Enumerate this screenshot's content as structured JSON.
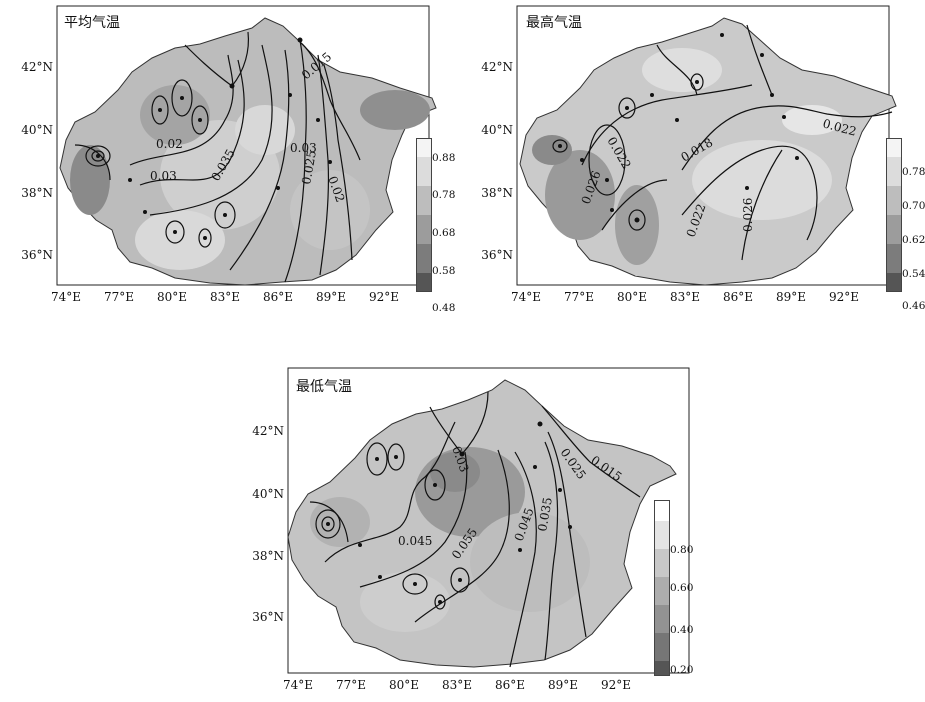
{
  "panels": [
    {
      "id": "mean",
      "title": "平均气温",
      "lat_labels": [
        "42°N",
        "40°N",
        "38°N",
        "36°N"
      ],
      "lon_labels": [
        "74°E",
        "77°E",
        "80°E",
        "83°E",
        "86°E",
        "89°E",
        "92°E"
      ],
      "contour_labels": [
        "0.015",
        "0.02",
        "0.03",
        "0.035",
        "0.03",
        "0.025",
        "0.02"
      ],
      "legend_labels": [
        "0.88",
        "0.78",
        "0.68",
        "0.58",
        "0.48"
      ],
      "legend_colors": [
        "#f4f4f4",
        "#dcdcdc",
        "#bdbdbd",
        "#9c9c9c",
        "#7c7c7c",
        "#555555"
      ]
    },
    {
      "id": "max",
      "title": "最高气温",
      "lat_labels": [
        "42°N",
        "40°N",
        "38°N",
        "36°N"
      ],
      "lon_labels": [
        "74°E",
        "77°E",
        "80°E",
        "83°E",
        "86°E",
        "89°E",
        "92°E"
      ],
      "contour_labels": [
        "0.022",
        "0.018",
        "0.022",
        "0.026",
        "0.022",
        "0.026"
      ],
      "legend_labels": [
        "0.78",
        "0.70",
        "0.62",
        "0.54",
        "0.46"
      ],
      "legend_colors": [
        "#f4f4f4",
        "#dcdcdc",
        "#bdbdbd",
        "#9c9c9c",
        "#7c7c7c",
        "#555555"
      ]
    },
    {
      "id": "min",
      "title": "最低气温",
      "lat_labels": [
        "42°N",
        "40°N",
        "38°N",
        "36°N"
      ],
      "lon_labels": [
        "74°E",
        "77°E",
        "80°E",
        "83°E",
        "86°E",
        "89°E",
        "92°E"
      ],
      "contour_labels": [
        "0.03",
        "0.025",
        "0.015",
        "0.045",
        "0.055",
        "0.045",
        "0.035"
      ],
      "legend_labels": [
        "0.80",
        "0.60",
        "0.40",
        "0.20"
      ],
      "legend_colors": [
        "#ffffff",
        "#e4e4e4",
        "#c8c8c8",
        "#adadad",
        "#929292",
        "#767676",
        "#555555"
      ]
    }
  ]
}
